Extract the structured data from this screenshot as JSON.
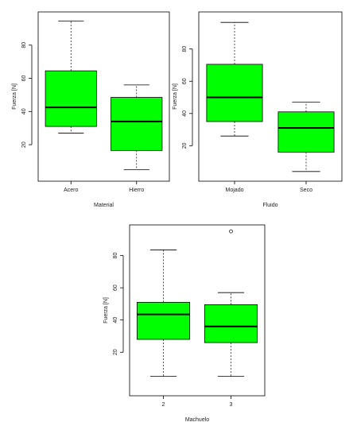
{
  "chart_data": [
    {
      "type": "box",
      "xlabel": "Material",
      "ylabel": "Fuerza [N]",
      "categories": [
        "Acero",
        "Hierro"
      ],
      "boxes": [
        {
          "whisker_low": 27,
          "q1": 31,
          "median": 42.5,
          "q3": 64.5,
          "whisker_high": 94.5
        },
        {
          "whisker_low": 5,
          "q1": 16.5,
          "median": 34,
          "q3": 48.5,
          "whisker_high": 56
        }
      ],
      "color": "#00ff00",
      "ylim": [
        -2,
        100
      ],
      "yticks": [
        20,
        40,
        60,
        80
      ]
    },
    {
      "type": "box",
      "xlabel": "Fluido",
      "ylabel": "Fuerza [N]",
      "categories": [
        "Mojado",
        "Seco"
      ],
      "boxes": [
        {
          "whisker_low": 26,
          "q1": 35,
          "median": 50,
          "q3": 70.5,
          "whisker_high": 96.5
        },
        {
          "whisker_low": 4,
          "q1": 16,
          "median": 31,
          "q3": 41,
          "whisker_high": 47
        }
      ],
      "color": "#00ff00",
      "ylim": [
        -2,
        103
      ],
      "yticks": [
        20,
        40,
        60,
        80
      ]
    },
    {
      "type": "box",
      "xlabel": "Machuelo",
      "ylabel": "Fuerza [N]",
      "categories": [
        "2",
        "3"
      ],
      "boxes": [
        {
          "whisker_low": 5,
          "q1": 28,
          "median": 43.5,
          "q3": 51,
          "whisker_high": 83.5
        },
        {
          "whisker_low": 5,
          "q1": 26,
          "median": 36,
          "q3": 49.5,
          "whisker_high": 57,
          "outliers": [
            95
          ]
        }
      ],
      "color": "#00ff00",
      "ylim": [
        -7,
        99
      ],
      "yticks": [
        20,
        40,
        60,
        80
      ]
    }
  ]
}
